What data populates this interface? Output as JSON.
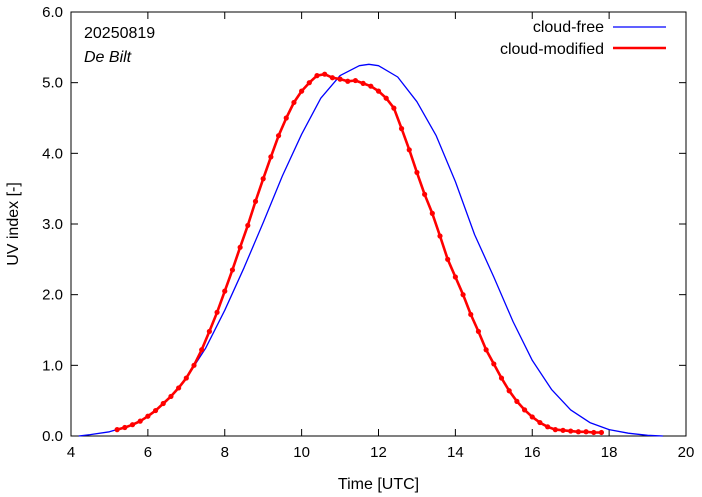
{
  "chart_data": {
    "type": "line",
    "title": "",
    "xlabel": "Time  [UTC]",
    "ylabel": "UV index  [-]",
    "xlim": [
      4,
      20
    ],
    "ylim": [
      0,
      6
    ],
    "xticks": [
      "4",
      "6",
      "8",
      "10",
      "12",
      "14",
      "16",
      "18",
      "20"
    ],
    "yticks": [
      "0.0",
      "1.0",
      "2.0",
      "3.0",
      "4.0",
      "5.0",
      "6.0"
    ],
    "grid": false,
    "legend_position": "top-right",
    "annotations": [
      "20250819",
      "De Bilt"
    ],
    "series": [
      {
        "name": "cloud-free",
        "color": "#0000ff",
        "style": "line",
        "x": [
          4.2,
          4.5,
          5.0,
          5.5,
          6.0,
          6.5,
          7.0,
          7.5,
          8.0,
          8.5,
          9.0,
          9.5,
          10.0,
          10.5,
          11.0,
          11.5,
          11.75,
          12.0,
          12.5,
          13.0,
          13.5,
          14.0,
          14.5,
          15.0,
          15.5,
          16.0,
          16.5,
          17.0,
          17.5,
          18.0,
          18.5,
          19.0,
          19.4
        ],
        "y": [
          0.0,
          0.02,
          0.06,
          0.14,
          0.27,
          0.5,
          0.82,
          1.24,
          1.78,
          2.38,
          3.02,
          3.68,
          4.27,
          4.78,
          5.1,
          5.24,
          5.26,
          5.24,
          5.08,
          4.73,
          4.25,
          3.6,
          2.85,
          2.25,
          1.62,
          1.07,
          0.66,
          0.37,
          0.19,
          0.09,
          0.04,
          0.01,
          0.0
        ]
      },
      {
        "name": "cloud-modified",
        "color": "#ff0000",
        "style": "line+markers",
        "x": [
          5.2,
          5.4,
          5.6,
          5.8,
          6.0,
          6.2,
          6.4,
          6.6,
          6.8,
          7.0,
          7.2,
          7.4,
          7.6,
          7.8,
          8.0,
          8.2,
          8.4,
          8.6,
          8.8,
          9.0,
          9.2,
          9.4,
          9.6,
          9.8,
          10.0,
          10.2,
          10.4,
          10.6,
          10.8,
          11.0,
          11.2,
          11.4,
          11.6,
          11.8,
          12.0,
          12.2,
          12.4,
          12.6,
          12.8,
          13.0,
          13.2,
          13.4,
          13.6,
          13.8,
          14.0,
          14.2,
          14.4,
          14.6,
          14.8,
          15.0,
          15.2,
          15.4,
          15.6,
          15.8,
          16.0,
          16.2,
          16.4,
          16.6,
          16.8,
          17.0,
          17.2,
          17.4,
          17.6,
          17.8
        ],
        "y": [
          0.09,
          0.12,
          0.16,
          0.21,
          0.28,
          0.36,
          0.46,
          0.56,
          0.68,
          0.82,
          1.0,
          1.22,
          1.48,
          1.75,
          2.05,
          2.35,
          2.67,
          2.98,
          3.32,
          3.64,
          3.95,
          4.25,
          4.5,
          4.72,
          4.88,
          5.0,
          5.1,
          5.12,
          5.07,
          5.05,
          5.02,
          5.03,
          4.99,
          4.95,
          4.88,
          4.78,
          4.64,
          4.35,
          4.05,
          3.73,
          3.42,
          3.15,
          2.83,
          2.5,
          2.25,
          2.0,
          1.72,
          1.48,
          1.22,
          1.02,
          0.82,
          0.64,
          0.49,
          0.37,
          0.27,
          0.19,
          0.13,
          0.09,
          0.08,
          0.07,
          0.06,
          0.06,
          0.05,
          0.05
        ]
      }
    ]
  }
}
